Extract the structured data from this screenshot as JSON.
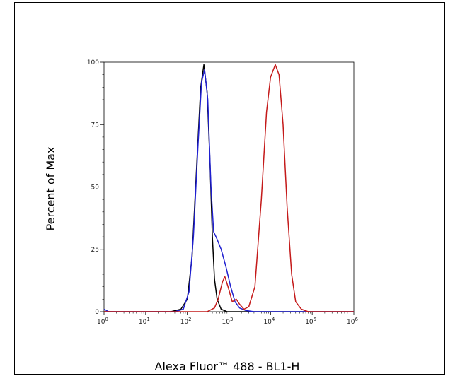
{
  "chart_data": {
    "type": "line",
    "title": "",
    "xlabel": "Alexa Fluor™ 488 - BL1-H",
    "ylabel": "Percent of Max",
    "x_scale": "log",
    "xlim": [
      1,
      1000000
    ],
    "ylim": [
      0,
      100
    ],
    "y_ticks": [
      0,
      25,
      50,
      75,
      100
    ],
    "y_tick_labels": [
      "0",
      "25",
      "50",
      "75",
      "100"
    ],
    "x_ticks": [
      1,
      10,
      100,
      1000,
      10000,
      100000,
      1000000
    ],
    "x_tick_labels": [
      {
        "base": "10",
        "exp": "0"
      },
      {
        "base": "10",
        "exp": "1"
      },
      {
        "base": "10",
        "exp": "2"
      },
      {
        "base": "10",
        "exp": "3"
      },
      {
        "base": "10",
        "exp": "4"
      },
      {
        "base": "10",
        "exp": "5"
      },
      {
        "base": "10",
        "exp": "6"
      }
    ],
    "grid": false,
    "legend": "none",
    "series": [
      {
        "color": "#000000",
        "points": [
          [
            1,
            0
          ],
          [
            10,
            0
          ],
          [
            40,
            0
          ],
          [
            70,
            1
          ],
          [
            100,
            5
          ],
          [
            130,
            22
          ],
          [
            170,
            60
          ],
          [
            210,
            90
          ],
          [
            250,
            99
          ],
          [
            300,
            88
          ],
          [
            350,
            60
          ],
          [
            400,
            30
          ],
          [
            450,
            13
          ],
          [
            520,
            5
          ],
          [
            650,
            1
          ],
          [
            900,
            0
          ],
          [
            1000000,
            0
          ]
        ]
      },
      {
        "color": "#1f1fd0",
        "points": [
          [
            1,
            1
          ],
          [
            1.3,
            0
          ],
          [
            10,
            0
          ],
          [
            50,
            0
          ],
          [
            80,
            1
          ],
          [
            110,
            8
          ],
          [
            140,
            30
          ],
          [
            180,
            66
          ],
          [
            220,
            92
          ],
          [
            260,
            97
          ],
          [
            310,
            85
          ],
          [
            370,
            50
          ],
          [
            430,
            32
          ],
          [
            520,
            29
          ],
          [
            650,
            25
          ],
          [
            850,
            18
          ],
          [
            1100,
            10
          ],
          [
            1400,
            4
          ],
          [
            1800,
            1.5
          ],
          [
            2500,
            0.5
          ],
          [
            4000,
            0
          ],
          [
            1000000,
            0
          ]
        ]
      },
      {
        "color": "#c41a1a",
        "points": [
          [
            1,
            0
          ],
          [
            100,
            0
          ],
          [
            300,
            0
          ],
          [
            450,
            1.5
          ],
          [
            550,
            5
          ],
          [
            700,
            12
          ],
          [
            800,
            14
          ],
          [
            950,
            10
          ],
          [
            1200,
            4
          ],
          [
            1500,
            5
          ],
          [
            1800,
            3
          ],
          [
            2300,
            1
          ],
          [
            3000,
            2
          ],
          [
            4200,
            10
          ],
          [
            6000,
            45
          ],
          [
            8000,
            80
          ],
          [
            10000,
            94
          ],
          [
            13000,
            99
          ],
          [
            16000,
            95
          ],
          [
            20000,
            75
          ],
          [
            25000,
            42
          ],
          [
            32000,
            15
          ],
          [
            40000,
            4
          ],
          [
            55000,
            1
          ],
          [
            80000,
            0
          ],
          [
            1000000,
            0
          ]
        ]
      }
    ]
  }
}
